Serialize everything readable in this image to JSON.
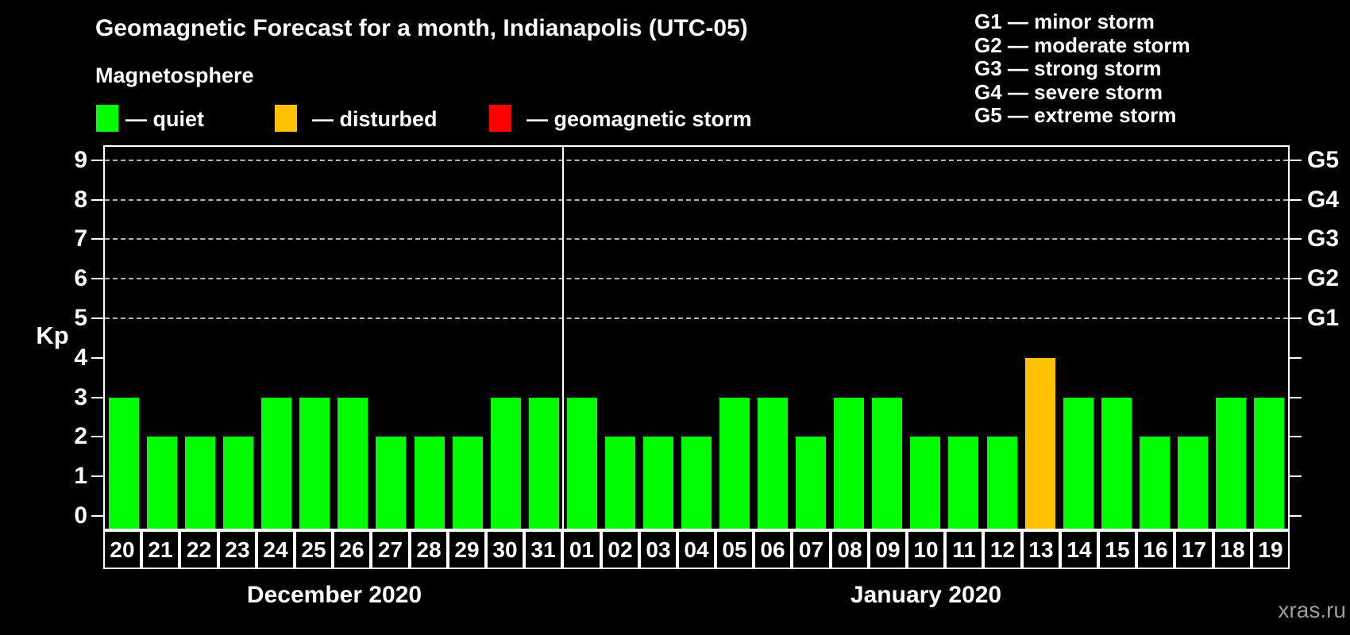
{
  "header": {
    "title": "Geomagnetic Forecast for a month, Indianapolis (UTC-05)",
    "subtitle": "Magnetosphere"
  },
  "legend": {
    "items": [
      {
        "name": "quiet",
        "label": "— quiet",
        "color": "#00ff00"
      },
      {
        "name": "disturbed",
        "label": "— disturbed",
        "color": "#ffc000"
      },
      {
        "name": "geomagnetic-storm",
        "label": "— geomagnetic storm",
        "color": "#ff0000"
      }
    ]
  },
  "storm_scale_legend": {
    "items": [
      "G1 — minor storm",
      "G2 — moderate storm",
      "G3 — strong storm",
      "G4 — severe storm",
      "G5 — extreme storm"
    ]
  },
  "watermark": "xras.ru",
  "chart_data": {
    "type": "bar",
    "title": "Geomagnetic Forecast for a month, Indianapolis (UTC-05)",
    "ylabel": "Kp",
    "ylim": [
      0,
      9
    ],
    "yticks": [
      0,
      1,
      2,
      3,
      4,
      5,
      6,
      7,
      8,
      9
    ],
    "gridlines_at": [
      5,
      6,
      7,
      8,
      9
    ],
    "grid": "dashed horizontal at G-storm levels only",
    "legend_position": "top",
    "right_axis": [
      {
        "label": "G1",
        "kp": 5
      },
      {
        "label": "G2",
        "kp": 6
      },
      {
        "label": "G3",
        "kp": 7
      },
      {
        "label": "G4",
        "kp": 8
      },
      {
        "label": "G5",
        "kp": 9
      }
    ],
    "bar_colors": {
      "quiet": "#00ff00",
      "disturbed": "#ffc000",
      "storm": "#ff0000"
    },
    "months": [
      {
        "label": "December 2020",
        "days": [
          "20",
          "21",
          "22",
          "23",
          "24",
          "25",
          "26",
          "27",
          "28",
          "29",
          "30",
          "31"
        ],
        "values": [
          3,
          2,
          2,
          2,
          3,
          3,
          3,
          2,
          2,
          2,
          3,
          3
        ],
        "status": [
          "quiet",
          "quiet",
          "quiet",
          "quiet",
          "quiet",
          "quiet",
          "quiet",
          "quiet",
          "quiet",
          "quiet",
          "quiet",
          "quiet"
        ]
      },
      {
        "label": "January 2020",
        "days": [
          "01",
          "02",
          "03",
          "04",
          "05",
          "06",
          "07",
          "08",
          "09",
          "10",
          "11",
          "12",
          "13",
          "14",
          "15",
          "16",
          "17",
          "18",
          "19"
        ],
        "values": [
          3,
          2,
          2,
          2,
          3,
          3,
          2,
          3,
          3,
          2,
          2,
          2,
          4,
          3,
          3,
          2,
          2,
          3,
          3
        ],
        "status": [
          "quiet",
          "quiet",
          "quiet",
          "quiet",
          "quiet",
          "quiet",
          "quiet",
          "quiet",
          "quiet",
          "quiet",
          "quiet",
          "quiet",
          "disturbed",
          "quiet",
          "quiet",
          "quiet",
          "quiet",
          "quiet",
          "quiet"
        ]
      }
    ]
  }
}
